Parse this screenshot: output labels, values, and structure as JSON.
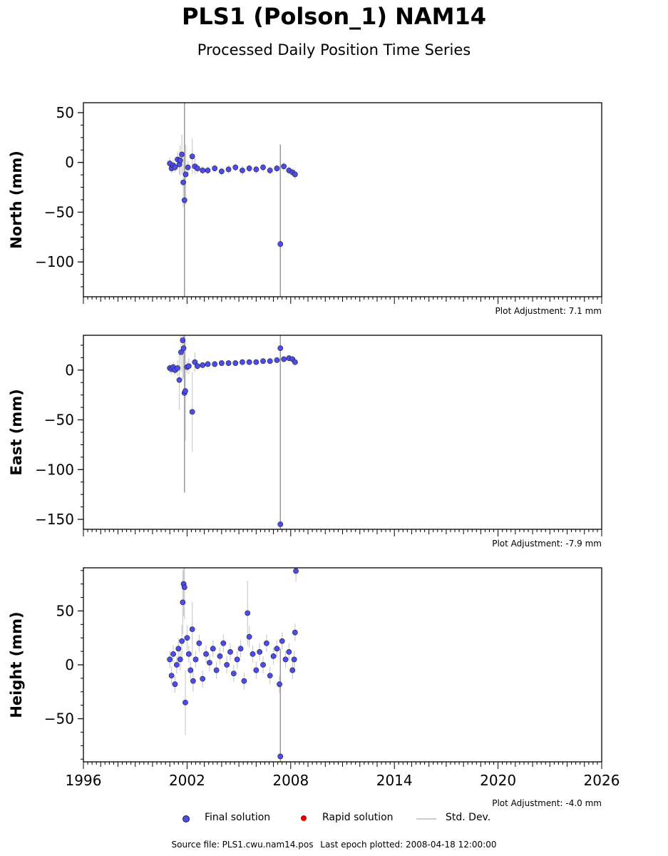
{
  "header": {
    "title": "PLS1 (Polson_1) NAM14",
    "subtitle": "Processed Daily Position Time Series"
  },
  "legend": {
    "final": "Final solution",
    "rapid": "Rapid solution",
    "std": "Std. Dev."
  },
  "footer": {
    "source": "Source file: PLS1.cwu.nam14.pos",
    "last_epoch": "Last epoch plotted: 2008-04-18 12:00:00"
  },
  "colors": {
    "final": "#4b4bf0",
    "rapid": "#e00000",
    "std": "#cccccc"
  },
  "chart_data": [
    {
      "type": "scatter",
      "ylabel": "North (mm)",
      "adjustment": "Plot Adjustment: 7.1 mm",
      "xlim": [
        1996,
        2026
      ],
      "ylim": [
        -135,
        60
      ],
      "yticks": [
        50,
        0,
        -50,
        -100
      ],
      "ytick_labels": [
        "50",
        "0",
        "−50",
        "−100"
      ],
      "series": [
        {
          "x": [
            2001.0,
            2001.1,
            2001.2,
            2001.3,
            2001.45,
            2001.55,
            2001.6,
            2001.7,
            2001.78,
            2001.85,
            2001.92,
            2002.05,
            2002.3,
            2002.45,
            2002.6,
            2002.9,
            2003.2,
            2003.6,
            2004.0,
            2004.4,
            2004.8,
            2005.2,
            2005.6,
            2006.0,
            2006.4,
            2006.8,
            2007.2,
            2007.4,
            2007.6,
            2007.9,
            2008.1,
            2008.25
          ],
          "y": [
            -1,
            -6,
            -3,
            -5,
            3,
            -2,
            2,
            8,
            -20,
            -38,
            -12,
            -5,
            6,
            -4,
            -6,
            -8,
            -8,
            -6,
            -9,
            -7,
            -5,
            -8,
            -6,
            -7,
            -5,
            -8,
            -6,
            -82,
            -4,
            -8,
            -10,
            -12
          ],
          "err": [
            6,
            5,
            6,
            5,
            8,
            10,
            15,
            20,
            25,
            100,
            30,
            6,
            18,
            8,
            5,
            4,
            4,
            4,
            4,
            4,
            4,
            5,
            4,
            4,
            4,
            4,
            4,
            100,
            4,
            4,
            4,
            5
          ]
        }
      ]
    },
    {
      "type": "scatter",
      "ylabel": "East (mm)",
      "adjustment": "Plot Adjustment: -7.9 mm",
      "xlim": [
        1996,
        2026
      ],
      "ylim": [
        -160,
        35
      ],
      "yticks": [
        0,
        -50,
        -100,
        -150
      ],
      "ytick_labels": [
        "0",
        "−50",
        "−100",
        "−150"
      ],
      "series": [
        {
          "x": [
            2001.0,
            2001.1,
            2001.2,
            2001.3,
            2001.45,
            2001.55,
            2001.65,
            2001.75,
            2001.8,
            2001.85,
            2001.9,
            2002.0,
            2002.1,
            2002.3,
            2002.45,
            2002.6,
            2002.9,
            2003.2,
            2003.6,
            2004.0,
            2004.4,
            2004.8,
            2005.2,
            2005.6,
            2006.0,
            2006.4,
            2006.8,
            2007.2,
            2007.4,
            2007.6,
            2007.9,
            2008.1,
            2008.25
          ],
          "y": [
            2,
            1,
            3,
            0,
            2,
            -10,
            18,
            30,
            22,
            -23,
            -21,
            3,
            4,
            -42,
            8,
            4,
            5,
            6,
            6,
            7,
            7,
            7,
            8,
            8,
            8,
            9,
            9,
            10,
            22,
            11,
            12,
            11,
            8
          ],
          "err": [
            5,
            5,
            5,
            5,
            8,
            30,
            20,
            40,
            30,
            100,
            50,
            6,
            8,
            40,
            10,
            4,
            3,
            3,
            3,
            3,
            3,
            3,
            3,
            3,
            3,
            3,
            3,
            3,
            10,
            3,
            3,
            3,
            4
          ]
        },
        {
          "x": [
            2007.4
          ],
          "y": [
            -155
          ],
          "err": [
            190
          ]
        }
      ]
    },
    {
      "type": "scatter",
      "ylabel": "Height (mm)",
      "adjustment": "Plot Adjustment: -4.0 mm",
      "xlim": [
        1996,
        2026
      ],
      "ylim": [
        -90,
        90
      ],
      "yticks": [
        50,
        0,
        -50
      ],
      "ytick_labels": [
        "50",
        "0",
        "−50"
      ],
      "xticks": [
        1996,
        2002,
        2008,
        2014,
        2020,
        2026
      ],
      "xtick_labels": [
        "1996",
        "2002",
        "2008",
        "2014",
        "2020",
        "2026"
      ],
      "series": [
        {
          "x": [
            2001.0,
            2001.1,
            2001.2,
            2001.3,
            2001.4,
            2001.5,
            2001.6,
            2001.7,
            2001.75,
            2001.8,
            2001.85,
            2001.9,
            2002.0,
            2002.1,
            2002.2,
            2002.3,
            2002.35,
            2002.5,
            2002.7,
            2002.9,
            2003.1,
            2003.3,
            2003.5,
            2003.7,
            2003.9,
            2004.1,
            2004.3,
            2004.5,
            2004.7,
            2004.9,
            2005.1,
            2005.3,
            2005.5,
            2005.6,
            2005.8,
            2006.0,
            2006.2,
            2006.4,
            2006.6,
            2006.8,
            2007.0,
            2007.2,
            2007.35,
            2007.4,
            2007.5,
            2007.7,
            2007.9,
            2008.1,
            2008.2,
            2008.25,
            2008.3
          ],
          "y": [
            5,
            -10,
            10,
            -18,
            0,
            15,
            5,
            22,
            58,
            75,
            72,
            -35,
            25,
            10,
            -5,
            33,
            -15,
            5,
            20,
            -13,
            10,
            2,
            15,
            -5,
            8,
            20,
            0,
            12,
            -8,
            5,
            15,
            -15,
            48,
            26,
            10,
            -5,
            12,
            0,
            20,
            -10,
            8,
            15,
            -18,
            -85,
            22,
            5,
            12,
            -5,
            5,
            30,
            87
          ],
          "err": [
            8,
            8,
            8,
            8,
            8,
            10,
            10,
            15,
            30,
            30,
            30,
            30,
            12,
            8,
            8,
            25,
            10,
            8,
            8,
            8,
            8,
            8,
            8,
            8,
            8,
            8,
            8,
            8,
            8,
            8,
            8,
            8,
            30,
            10,
            8,
            8,
            8,
            8,
            8,
            8,
            8,
            8,
            8,
            100,
            8,
            8,
            8,
            8,
            8,
            8,
            10
          ]
        }
      ]
    }
  ]
}
